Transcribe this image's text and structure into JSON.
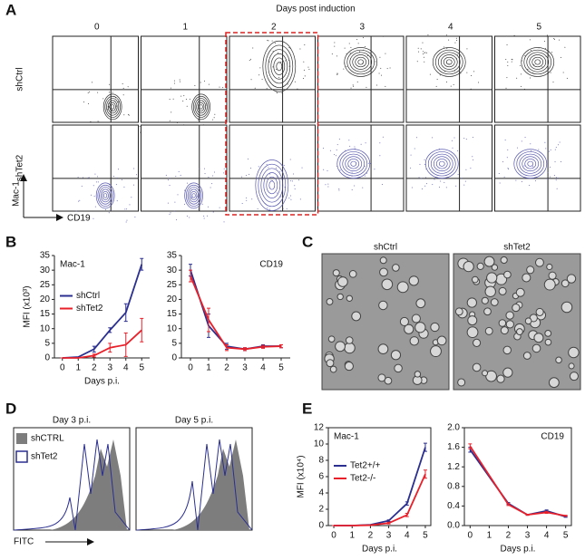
{
  "panel_labels": [
    "A",
    "B",
    "C",
    "D",
    "E"
  ],
  "panel_a": {
    "title": "Days post induction",
    "columns": [
      "0",
      "1",
      "2",
      "3",
      "4",
      "5"
    ],
    "rows": [
      "shCtrl",
      "shTet2"
    ],
    "y_axis": "Mac-1",
    "x_axis": "CD19"
  },
  "panel_c": {
    "images": [
      "shCtrl",
      "shTet2"
    ]
  },
  "panel_d": {
    "plots": [
      "Day 3 p.i.",
      "Day 5 p.i."
    ],
    "legend": [
      "shCTRL",
      "shTet2"
    ],
    "x_axis": "FITC"
  },
  "chart_data": [
    {
      "type": "line",
      "title": "Mac-1",
      "xlabel": "Days p.i.",
      "ylabel": "MFI (x10³)",
      "legend": "center left",
      "x": [
        0,
        1,
        2,
        3,
        4,
        5
      ],
      "xlim": [
        -0.5,
        5.5
      ],
      "xticks": [
        0,
        1,
        2,
        3,
        4,
        5
      ],
      "ylim": [
        0,
        35
      ],
      "yticks": [
        0,
        5,
        10,
        15,
        20,
        25,
        30,
        35
      ],
      "series": [
        {
          "name": "shCtrl",
          "color": "#2b2f8f",
          "values": [
            0,
            0.3,
            3,
            9.5,
            15.5,
            32
          ],
          "errors": [
            0,
            0,
            1,
            0.8,
            3,
            2
          ]
        },
        {
          "name": "shTet2",
          "color": "#e8202a",
          "values": [
            0,
            0,
            0.8,
            3.5,
            4.5,
            9.5
          ],
          "errors": [
            0,
            0,
            0.5,
            1.5,
            4,
            4
          ]
        }
      ]
    },
    {
      "type": "line",
      "title": "CD19",
      "x": [
        0,
        1,
        2,
        3,
        4,
        5
      ],
      "xlim": [
        -0.5,
        5.5
      ],
      "xticks": [
        0,
        1,
        2,
        3,
        4,
        5
      ],
      "ylim": [
        0,
        35
      ],
      "yticks": [
        0,
        5,
        10,
        15,
        20,
        25,
        30,
        35
      ],
      "series": [
        {
          "color": "#2b2f8f",
          "values": [
            30,
            11,
            4,
            3,
            4,
            4
          ],
          "errors": [
            2,
            4,
            1,
            0.5,
            0.5,
            0.5
          ]
        },
        {
          "color": "#e8202a",
          "values": [
            28,
            13,
            3.5,
            3,
            3.8,
            4
          ],
          "errors": [
            2,
            4,
            1,
            0.5,
            0.5,
            0.5
          ]
        }
      ]
    },
    {
      "type": "line",
      "title": "Mac-1",
      "xlabel": "Days p.i.",
      "ylabel": "MFI (x10⁴)",
      "legend": "center left",
      "x": [
        0,
        1,
        2,
        3,
        4,
        5
      ],
      "xlim": [
        -0.3,
        5.3
      ],
      "xticks": [
        0,
        1,
        2,
        3,
        4,
        5
      ],
      "ylim": [
        0,
        12
      ],
      "yticks": [
        0,
        2,
        4,
        6,
        8,
        10,
        12
      ],
      "series": [
        {
          "name": "Tet2+/+",
          "color": "#2b2f8f",
          "values": [
            0,
            0,
            0.1,
            0.6,
            2.7,
            9.6
          ],
          "errors": [
            0,
            0,
            0,
            0.1,
            0.2,
            0.5
          ]
        },
        {
          "name": "Tet2-/-",
          "color": "#e8202a",
          "values": [
            0,
            0,
            0.05,
            0.3,
            1.3,
            6.3
          ],
          "errors": [
            0,
            0,
            0,
            0.1,
            0.2,
            0.5
          ]
        }
      ]
    },
    {
      "type": "line",
      "title": "CD19",
      "xlabel": "Days p.i.",
      "x": [
        0,
        2,
        3,
        4,
        5
      ],
      "xlim": [
        -0.3,
        5.3
      ],
      "xticks": [
        0,
        1,
        2,
        3,
        4,
        5
      ],
      "ylim": [
        0,
        2
      ],
      "yticks": [
        {
          "value": 0,
          "label": "0.0"
        },
        {
          "value": 0.4,
          "label": "0.4"
        },
        {
          "value": 0.8,
          "label": "0.8"
        },
        {
          "value": 1.2,
          "label": "1.2"
        },
        {
          "value": 1.6,
          "label": "1.6"
        },
        {
          "value": 2,
          "label": "2.0"
        }
      ],
      "series": [
        {
          "color": "#2b2f8f",
          "values": [
            1.55,
            0.45,
            0.22,
            0.3,
            0.18
          ],
          "errors": [
            0.05,
            0.02,
            0.01,
            0.02,
            0.01
          ]
        },
        {
          "color": "#e8202a",
          "values": [
            1.62,
            0.43,
            0.22,
            0.27,
            0.2
          ],
          "errors": [
            0.05,
            0.02,
            0.01,
            0.02,
            0.01
          ]
        }
      ]
    }
  ]
}
